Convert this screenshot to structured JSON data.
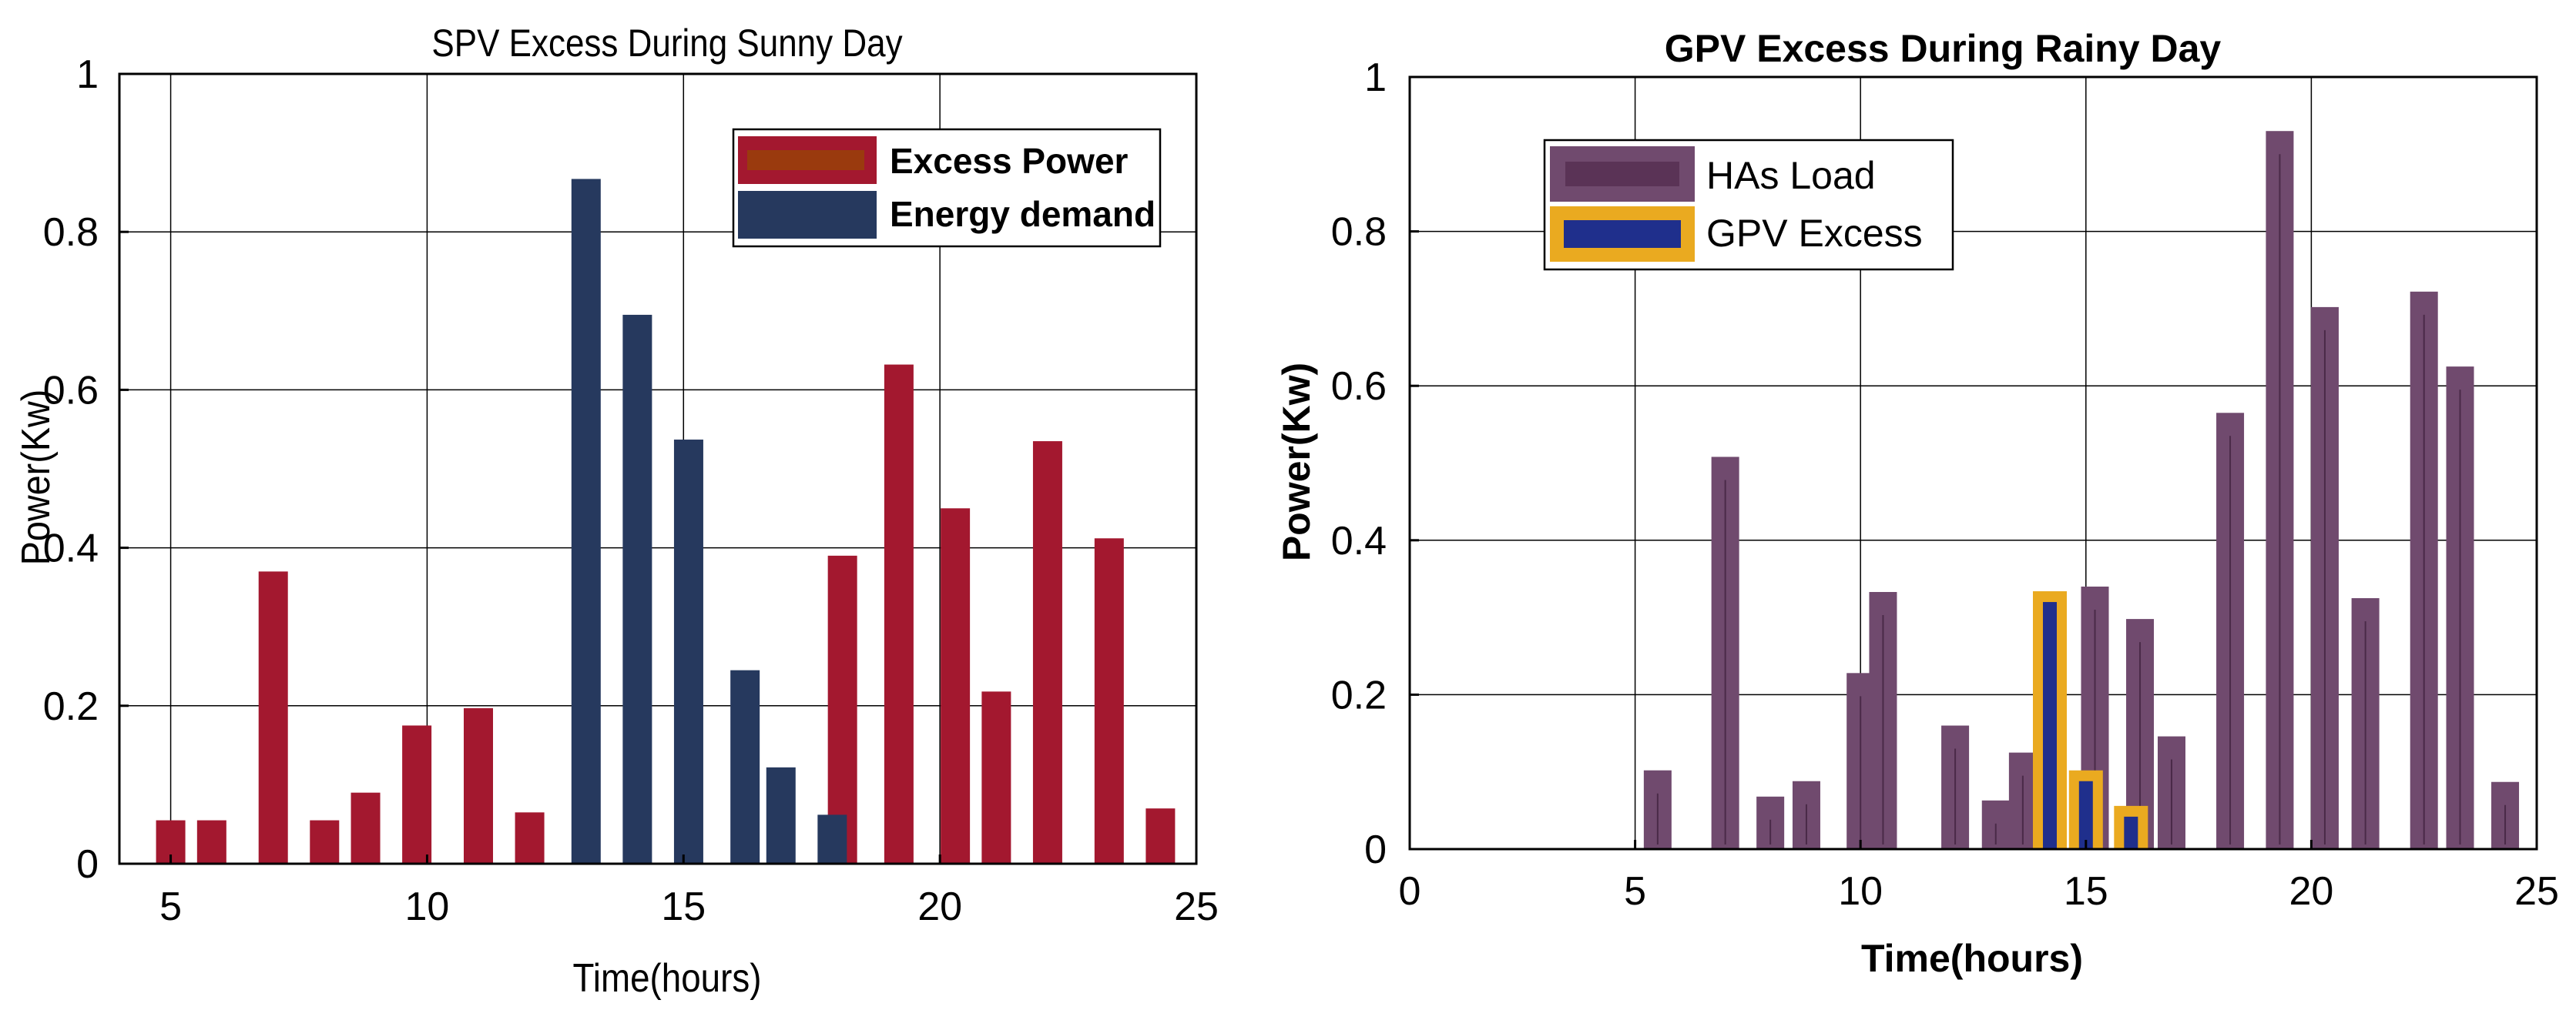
{
  "chart_data": [
    {
      "type": "bar",
      "title": "SPV Excess During Sunny Day",
      "xlabel": "Time(hours)",
      "ylabel": "Power(Kw)",
      "xlim": [
        4,
        25
      ],
      "ylim": [
        0,
        1
      ],
      "xticks": [
        5,
        10,
        15,
        20,
        25
      ],
      "yticks": [
        0,
        0.2,
        0.4,
        0.6,
        0.8,
        1
      ],
      "grid": true,
      "legend_position": "top-right",
      "series": [
        {
          "name": "Excess Power",
          "color": "#A3182F",
          "points": [
            {
              "x": 5,
              "y": 0.055
            },
            {
              "x": 5.8,
              "y": 0.055
            },
            {
              "x": 7,
              "y": 0.37
            },
            {
              "x": 8,
              "y": 0.055
            },
            {
              "x": 8.8,
              "y": 0.09
            },
            {
              "x": 9.8,
              "y": 0.175
            },
            {
              "x": 11,
              "y": 0.197
            },
            {
              "x": 12,
              "y": 0.065
            },
            {
              "x": 18.1,
              "y": 0.39
            },
            {
              "x": 19.2,
              "y": 0.632
            },
            {
              "x": 20.3,
              "y": 0.45
            },
            {
              "x": 21.1,
              "y": 0.218
            },
            {
              "x": 22.1,
              "y": 0.535
            },
            {
              "x": 23.3,
              "y": 0.412
            },
            {
              "x": 24.3,
              "y": 0.07
            }
          ]
        },
        {
          "name": "Energy demand",
          "color": "#26395E",
          "points": [
            {
              "x": 13.1,
              "y": 0.867
            },
            {
              "x": 14.1,
              "y": 0.695
            },
            {
              "x": 15.1,
              "y": 0.537
            },
            {
              "x": 16.2,
              "y": 0.245
            },
            {
              "x": 16.9,
              "y": 0.122
            },
            {
              "x": 17.9,
              "y": 0.062
            }
          ]
        }
      ]
    },
    {
      "type": "bar",
      "title": "GPV Excess During Rainy Day",
      "xlabel": "Time(hours)",
      "ylabel": "Power(Kw)",
      "xlim": [
        0,
        25
      ],
      "ylim": [
        0,
        1
      ],
      "xticks": [
        0,
        5,
        10,
        15,
        20,
        25
      ],
      "yticks": [
        0,
        0.2,
        0.4,
        0.6,
        0.8,
        1
      ],
      "grid": true,
      "legend_position": "top-left",
      "series": [
        {
          "name": "HAs Load",
          "color": "#704A6E",
          "points": [
            {
              "x": 5.5,
              "y": 0.102
            },
            {
              "x": 7,
              "y": 0.508
            },
            {
              "x": 8,
              "y": 0.068
            },
            {
              "x": 8.8,
              "y": 0.088
            },
            {
              "x": 10,
              "y": 0.228
            },
            {
              "x": 10.5,
              "y": 0.333
            },
            {
              "x": 12.1,
              "y": 0.16
            },
            {
              "x": 13,
              "y": 0.063
            },
            {
              "x": 13.6,
              "y": 0.125
            },
            {
              "x": 15.2,
              "y": 0.34
            },
            {
              "x": 16.2,
              "y": 0.298
            },
            {
              "x": 16.9,
              "y": 0.146
            },
            {
              "x": 18.2,
              "y": 0.565
            },
            {
              "x": 19.3,
              "y": 0.93
            },
            {
              "x": 20.3,
              "y": 0.702
            },
            {
              "x": 21.2,
              "y": 0.325
            },
            {
              "x": 22.5,
              "y": 0.722
            },
            {
              "x": 23.3,
              "y": 0.625
            },
            {
              "x": 24.3,
              "y": 0.087
            }
          ]
        },
        {
          "name": "GPV Excess",
          "color": "#1F2F8C",
          "edge_color": "#EAAA20",
          "points": [
            {
              "x": 14.2,
              "y": 0.32
            },
            {
              "x": 15,
              "y": 0.088
            },
            {
              "x": 16,
              "y": 0.042
            }
          ]
        }
      ]
    }
  ]
}
